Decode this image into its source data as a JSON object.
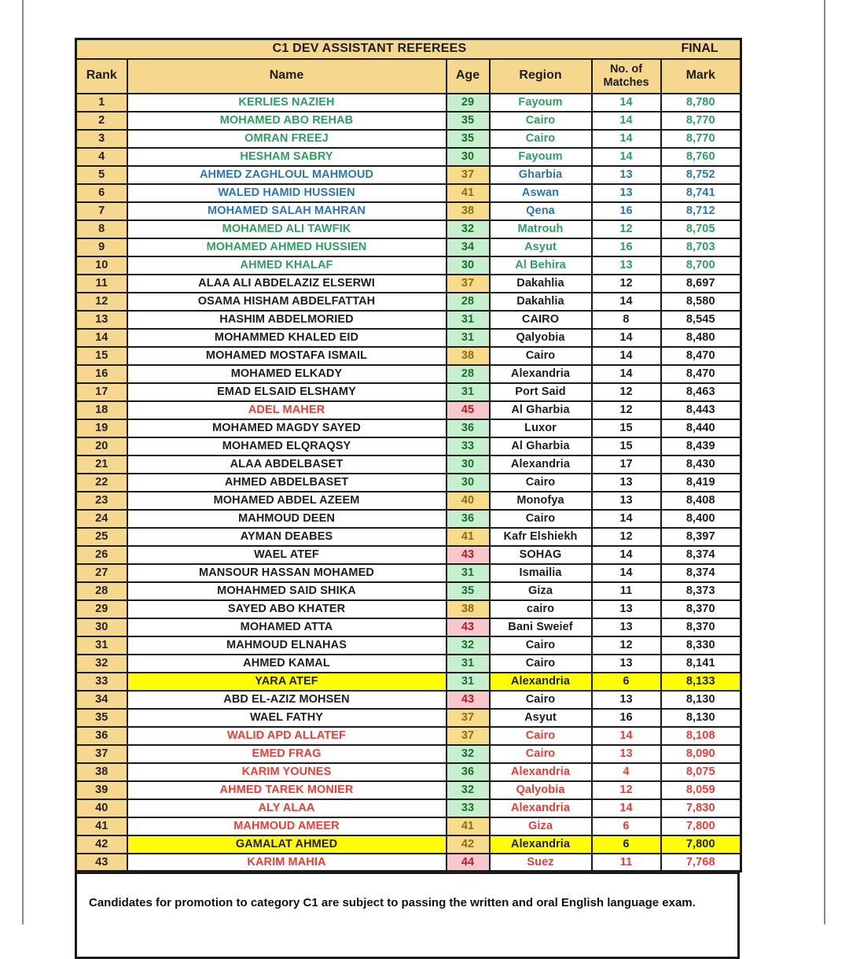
{
  "page": {
    "title": "C1 DEV ASSISTANT REFEREES",
    "final_label": "FINAL",
    "footer_note": "Candidates for promotion to category C1 are subject to passing the written and oral English language exam."
  },
  "columns": {
    "rank": "Rank",
    "name": "Name",
    "age": "Age",
    "region": "Region",
    "matches": "No. of Matches",
    "mark": "Mark"
  },
  "colors": {
    "header_bg": "#F5D88E",
    "age_good_bg": "#C6EFCE",
    "age_good_text": "#1F6B33",
    "age_neutral_bg": "#F8DC8C",
    "age_neutral_text": "#8F6B14",
    "age_bad_bg": "#F8C7CC",
    "age_bad_text": "#B02025",
    "row_text_green": "#2BA15D",
    "row_text_blue": "#2B76B8",
    "row_text_red": "#EF3C33",
    "row_text_black": "#1D1D1D",
    "highlight_yellow": "#FFFF00",
    "border": "#1B1B1B"
  },
  "rows": [
    {
      "rank": 1,
      "name": "KERLIES NAZIEH",
      "age": 29,
      "region": "Fayoum",
      "matches": 14,
      "mark": "8,780",
      "color": "green"
    },
    {
      "rank": 2,
      "name": "MOHAMED ABO REHAB",
      "age": 35,
      "region": "Cairo",
      "matches": 14,
      "mark": "8,770",
      "color": "green"
    },
    {
      "rank": 3,
      "name": "OMRAN FREEJ",
      "age": 35,
      "region": "Cairo",
      "matches": 14,
      "mark": "8,770",
      "color": "green"
    },
    {
      "rank": 4,
      "name": "HESHAM SABRY",
      "age": 30,
      "region": "Fayoum",
      "matches": 14,
      "mark": "8,760",
      "color": "green"
    },
    {
      "rank": 5,
      "name": "AHMED ZAGHLOUL MAHMOUD",
      "age": 37,
      "region": "Gharbia",
      "matches": 13,
      "mark": "8,752",
      "color": "blue"
    },
    {
      "rank": 6,
      "name": "WALED HAMID HUSSIEN",
      "age": 41,
      "region": "Aswan",
      "matches": 13,
      "mark": "8,741",
      "color": "blue"
    },
    {
      "rank": 7,
      "name": "MOHAMED SALAH MAHRAN",
      "age": 38,
      "region": "Qena",
      "matches": 16,
      "mark": "8,712",
      "color": "blue"
    },
    {
      "rank": 8,
      "name": "MOHAMED ALI TAWFIK",
      "age": 32,
      "region": "Matrouh",
      "matches": 12,
      "mark": "8,705",
      "color": "green"
    },
    {
      "rank": 9,
      "name": "MOHAMED AHMED HUSSIEN",
      "age": 34,
      "region": "Asyut",
      "matches": 16,
      "mark": "8,703",
      "color": "green"
    },
    {
      "rank": 10,
      "name": "AHMED KHALAF",
      "age": 30,
      "region": "Al Behira",
      "matches": 13,
      "mark": "8,700",
      "color": "green"
    },
    {
      "rank": 11,
      "name": "ALAA ALI ABDELAZIZ ELSERWI",
      "age": 37,
      "region": "Dakahlia",
      "matches": 12,
      "mark": "8,697",
      "color": "black"
    },
    {
      "rank": 12,
      "name": "OSAMA HISHAM ABDELFATTAH",
      "age": 28,
      "region": "Dakahlia",
      "matches": 14,
      "mark": "8,580",
      "color": "black"
    },
    {
      "rank": 13,
      "name": "HASHIM ABDELMORIED",
      "age": 31,
      "region": "CAIRO",
      "matches": 8,
      "mark": "8,545",
      "color": "black"
    },
    {
      "rank": 14,
      "name": "MOHAMMED KHALED EID",
      "age": 31,
      "region": "Qalyobia",
      "matches": 14,
      "mark": "8,480",
      "color": "black"
    },
    {
      "rank": 15,
      "name": "MOHAMED MOSTAFA ISMAIL",
      "age": 38,
      "region": "Cairo",
      "matches": 14,
      "mark": "8,470",
      "color": "black"
    },
    {
      "rank": 16,
      "name": "MOHAMED ELKADY",
      "age": 28,
      "region": "Alexandria",
      "matches": 14,
      "mark": "8,470",
      "color": "black"
    },
    {
      "rank": 17,
      "name": "EMAD ELSAID ELSHAMY",
      "age": 31,
      "region": "Port Said",
      "matches": 12,
      "mark": "8,463",
      "color": "black"
    },
    {
      "rank": 18,
      "name": "ADEL MAHER",
      "age": 45,
      "region": "Al Gharbia",
      "matches": 12,
      "mark": "8,443",
      "color": "black",
      "name_color": "red"
    },
    {
      "rank": 19,
      "name": "MOHAMED MAGDY SAYED",
      "age": 36,
      "region": "Luxor",
      "matches": 15,
      "mark": "8,440",
      "color": "black"
    },
    {
      "rank": 20,
      "name": "MOHAMED ELQRAQSY",
      "age": 33,
      "region": "Al Gharbia",
      "matches": 15,
      "mark": "8,439",
      "color": "black"
    },
    {
      "rank": 21,
      "name": "ALAA ABDELBASET",
      "age": 30,
      "region": "Alexandria",
      "matches": 17,
      "mark": "8,430",
      "color": "black"
    },
    {
      "rank": 22,
      "name": "AHMED ABDELBASET",
      "age": 30,
      "region": "Cairo",
      "matches": 13,
      "mark": "8,419",
      "color": "black"
    },
    {
      "rank": 23,
      "name": "MOHAMED ABDEL AZEEM",
      "age": 40,
      "region": "Monofya",
      "matches": 13,
      "mark": "8,408",
      "color": "black"
    },
    {
      "rank": 24,
      "name": "MAHMOUD DEEN",
      "age": 36,
      "region": "Cairo",
      "matches": 14,
      "mark": "8,400",
      "color": "black"
    },
    {
      "rank": 25,
      "name": "AYMAN DEABES",
      "age": 41,
      "region": "Kafr Elshiekh",
      "matches": 12,
      "mark": "8,397",
      "color": "black"
    },
    {
      "rank": 26,
      "name": "WAEL ATEF",
      "age": 43,
      "region": "SOHAG",
      "matches": 14,
      "mark": "8,374",
      "color": "black"
    },
    {
      "rank": 27,
      "name": "MANSOUR HASSAN MOHAMED",
      "age": 31,
      "region": "Ismailia",
      "matches": 14,
      "mark": "8,374",
      "color": "black"
    },
    {
      "rank": 28,
      "name": "MOHAHMED SAID SHIKA",
      "age": 35,
      "region": "Giza",
      "matches": 11,
      "mark": "8,373",
      "color": "black"
    },
    {
      "rank": 29,
      "name": "SAYED ABO KHATER",
      "age": 38,
      "region": "cairo",
      "matches": 13,
      "mark": "8,370",
      "color": "black"
    },
    {
      "rank": 30,
      "name": "MOHAMED ATTA",
      "age": 43,
      "region": "Bani Sweief",
      "matches": 13,
      "mark": "8,370",
      "color": "black"
    },
    {
      "rank": 31,
      "name": "MAHMOUD ELNAHAS",
      "age": 32,
      "region": "Cairo",
      "matches": 12,
      "mark": "8,330",
      "color": "black"
    },
    {
      "rank": 32,
      "name": "AHMED KAMAL",
      "age": 31,
      "region": "Cairo",
      "matches": 13,
      "mark": "8,141",
      "color": "black"
    },
    {
      "rank": 33,
      "name": "YARA ATEF",
      "age": 31,
      "region": "Alexandria",
      "matches": 6,
      "mark": "8,133",
      "color": "black",
      "highlight": true
    },
    {
      "rank": 34,
      "name": "ABD EL-AZIZ MOHSEN",
      "age": 43,
      "region": "Cairo",
      "matches": 13,
      "mark": "8,130",
      "color": "black"
    },
    {
      "rank": 35,
      "name": "WAEL FATHY",
      "age": 37,
      "region": "Asyut",
      "matches": 16,
      "mark": "8,130",
      "color": "black"
    },
    {
      "rank": 36,
      "name": "WALID APD ALLATEF",
      "age": 37,
      "region": "Cairo",
      "matches": 14,
      "mark": "8,108",
      "color": "red"
    },
    {
      "rank": 37,
      "name": "EMED FRAG",
      "age": 32,
      "region": "Cairo",
      "matches": 13,
      "mark": "8,090",
      "color": "red"
    },
    {
      "rank": 38,
      "name": "KARIM YOUNES",
      "age": 36,
      "region": "Alexandria",
      "matches": 4,
      "mark": "8,075",
      "color": "red"
    },
    {
      "rank": 39,
      "name": "AHMED TAREK MONIER",
      "age": 32,
      "region": "Qalyobia",
      "matches": 12,
      "mark": "8,059",
      "color": "red"
    },
    {
      "rank": 40,
      "name": "ALY ALAA",
      "age": 33,
      "region": "Alexandria",
      "matches": 14,
      "mark": "7,830",
      "color": "red"
    },
    {
      "rank": 41,
      "name": "MAHMOUD AMEER",
      "age": 41,
      "region": "Giza",
      "matches": 6,
      "mark": "7,800",
      "color": "red"
    },
    {
      "rank": 42,
      "name": "GAMALAT AHMED",
      "age": 42,
      "region": "Alexandria",
      "matches": 6,
      "mark": "7,800",
      "color": "black",
      "highlight": true
    },
    {
      "rank": 43,
      "name": "KARIM MAHIA",
      "age": 44,
      "region": "Suez",
      "matches": 11,
      "mark": "7,768",
      "color": "red"
    }
  ]
}
